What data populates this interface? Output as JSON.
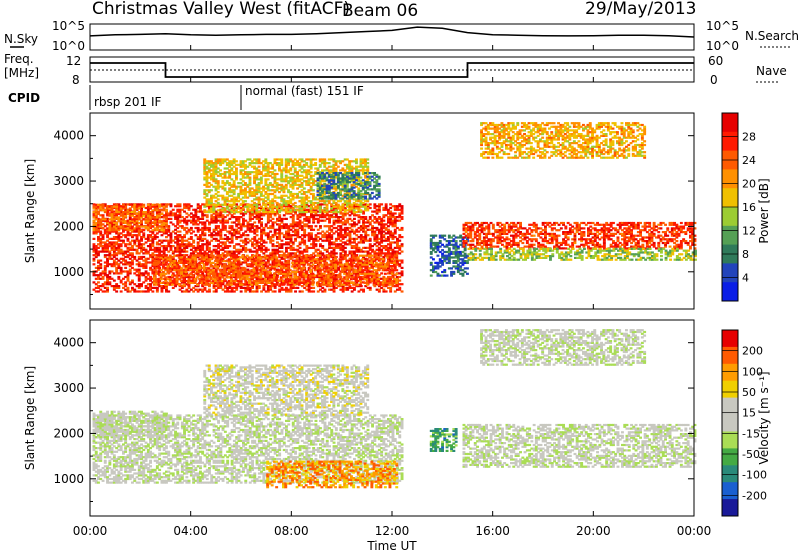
{
  "header": {
    "station": "Christmas Valley West (fitACF)",
    "beam": "Beam 06",
    "date": "29/May/2013"
  },
  "top_panels": {
    "nsky_label": "N.Sky",
    "nsky_ticks": [
      "10^5",
      "10^0"
    ],
    "nsearch_label": "N.Search",
    "nsearch_ticks": [
      "10^5",
      "10^0"
    ],
    "freq_label_1": "Freq.",
    "freq_label_2": "[MHz]",
    "freq_ticks": [
      "12",
      "8"
    ],
    "nave_label": "Nave",
    "nave_ticks": [
      "60",
      "0"
    ],
    "cpid_label": "CPID",
    "cpid_modes": [
      {
        "start_hour": 0,
        "label": "rbsp 201 IF"
      },
      {
        "start_hour": 6,
        "label": "normal (fast) 151 IF"
      }
    ]
  },
  "chart_data": [
    {
      "type": "heatmap",
      "title": "Power",
      "xlabel": "",
      "ylabel": "Slant Range [km]",
      "xlim_hours": [
        0,
        24
      ],
      "ylim_km": [
        180,
        4500
      ],
      "y_ticks": [
        "1000",
        "2000",
        "3000",
        "4000"
      ],
      "colorbar_label": "Power [dB]",
      "colorbar_ticks": [
        "28",
        "24",
        "20",
        "16",
        "12",
        "8",
        "4"
      ],
      "colors": [
        "#0a1ee6",
        "#2244bb",
        "#2f7a5a",
        "#55a055",
        "#9ccc33",
        "#f0c000",
        "#ff9000",
        "#ff5a00",
        "#ff1a00",
        "#e60000"
      ],
      "bands": [
        {
          "t_start": 0.1,
          "t_end": 12.4,
          "r_start": 550,
          "r_end": 2500,
          "level": 0.85
        },
        {
          "t_start": 0.1,
          "t_end": 3.0,
          "r_start": 1900,
          "r_end": 2500,
          "level": 0.72
        },
        {
          "t_start": 2.5,
          "t_end": 12.2,
          "r_start": 700,
          "r_end": 1350,
          "level": 0.75
        },
        {
          "t_start": 4.5,
          "t_end": 11.0,
          "r_start": 2300,
          "r_end": 3500,
          "level": 0.55
        },
        {
          "t_start": 9.0,
          "t_end": 11.5,
          "r_start": 2600,
          "r_end": 3200,
          "level": 0.25
        },
        {
          "t_start": 13.5,
          "t_end": 15.0,
          "r_start": 900,
          "r_end": 1800,
          "level": 0.2
        },
        {
          "t_start": 14.8,
          "t_end": 24.0,
          "r_start": 1500,
          "r_end": 2100,
          "level": 0.82
        },
        {
          "t_start": 15.5,
          "t_end": 22.0,
          "r_start": 3500,
          "r_end": 4300,
          "level": 0.6
        },
        {
          "t_start": 15.0,
          "t_end": 24.0,
          "r_start": 1250,
          "r_end": 1500,
          "level": 0.45
        }
      ]
    },
    {
      "type": "heatmap",
      "title": "Velocity",
      "xlabel": "Time UT",
      "ylabel": "Slant Range [km]",
      "xlim_hours": [
        0,
        24
      ],
      "ylim_km": [
        180,
        4500
      ],
      "x_ticks": [
        "00:00",
        "04:00",
        "08:00",
        "12:00",
        "16:00",
        "20:00",
        "00:00"
      ],
      "y_ticks": [
        "1000",
        "2000",
        "3000",
        "4000"
      ],
      "colorbar_label": "Velocity [m s⁻¹]",
      "colorbar_ticks": [
        "200",
        "100",
        "50",
        "15",
        "-15",
        "-50",
        "-100",
        "-200"
      ],
      "colors": [
        "#1a1a99",
        "#1a5fd0",
        "#2a8a7a",
        "#44aa44",
        "#aadd55",
        "#c8c8c0",
        "#c8c8c0",
        "#f0d000",
        "#ff9c00",
        "#ff5a00",
        "#e60000"
      ],
      "bands": [
        {
          "t_start": 0.1,
          "t_end": 3.0,
          "r_start": 1900,
          "r_end": 2500,
          "level": 0.5
        },
        {
          "t_start": 0.1,
          "t_end": 12.4,
          "r_start": 900,
          "r_end": 2400,
          "level": 0.5
        },
        {
          "t_start": 7.0,
          "t_end": 12.2,
          "r_start": 800,
          "r_end": 1400,
          "level": 0.78
        },
        {
          "t_start": 4.5,
          "t_end": 11.0,
          "r_start": 2400,
          "r_end": 3500,
          "level": 0.55
        },
        {
          "t_start": 13.5,
          "t_end": 14.5,
          "r_start": 1600,
          "r_end": 2100,
          "level": 0.3
        },
        {
          "t_start": 14.8,
          "t_end": 24.0,
          "r_start": 1250,
          "r_end": 2200,
          "level": 0.5
        },
        {
          "t_start": 15.5,
          "t_end": 22.0,
          "r_start": 3500,
          "r_end": 4300,
          "level": 0.5
        }
      ]
    }
  ],
  "line_series": {
    "nsky_hours": [
      0,
      1,
      2,
      3,
      4,
      5,
      6,
      7,
      8,
      9,
      10,
      11,
      12,
      13,
      14,
      15,
      16,
      17,
      18,
      19,
      20,
      21,
      22,
      23,
      24
    ],
    "nsky_values": [
      0.55,
      0.6,
      0.62,
      0.65,
      0.6,
      0.58,
      0.6,
      0.62,
      0.62,
      0.65,
      0.7,
      0.75,
      0.8,
      0.95,
      0.9,
      0.7,
      0.6,
      0.58,
      0.56,
      0.55,
      0.56,
      0.58,
      0.58,
      0.56,
      0.5
    ],
    "freq_hours": [
      0,
      3,
      3,
      15,
      15,
      24
    ],
    "freq_values": [
      0.85,
      0.85,
      0.15,
      0.15,
      0.85,
      0.85
    ]
  }
}
